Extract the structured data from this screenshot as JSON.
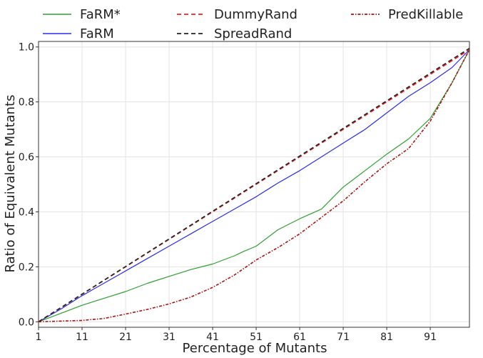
{
  "chart_data": {
    "type": "line",
    "xlabel": "Percentage of Mutants",
    "ylabel": "Ratio of Equivalent Mutants",
    "xlim": [
      1,
      100
    ],
    "ylim": [
      -0.02,
      1.02
    ],
    "x_ticks": [
      1,
      11,
      21,
      31,
      41,
      51,
      61,
      71,
      81,
      91
    ],
    "x_tick_labels": [
      "1",
      "11",
      "21",
      "31",
      "41",
      "51",
      "61",
      "71",
      "81",
      "91"
    ],
    "y_ticks": [
      0.0,
      0.2,
      0.4,
      0.6,
      0.8,
      1.0
    ],
    "y_tick_labels": [
      "0.0",
      "0.2",
      "0.4",
      "0.6",
      "0.8",
      "1.0"
    ],
    "grid": true,
    "legend_placement": "top, outside plot",
    "series": [
      {
        "name": "FaRM*",
        "color": "#2ca02c",
        "dash": "solid",
        "x": [
          1,
          6,
          11,
          16,
          21,
          26,
          31,
          36,
          41,
          46,
          48,
          51,
          56,
          61,
          66,
          71,
          76,
          81,
          86,
          91,
          96,
          100
        ],
        "y": [
          0.0,
          0.03,
          0.06,
          0.085,
          0.11,
          0.14,
          0.165,
          0.19,
          0.21,
          0.24,
          0.255,
          0.275,
          0.335,
          0.375,
          0.41,
          0.49,
          0.55,
          0.61,
          0.665,
          0.74,
          0.87,
          0.99
        ]
      },
      {
        "name": "FaRM",
        "color": "#2b2bee",
        "dash": "solid",
        "x": [
          1,
          6,
          11,
          16,
          21,
          26,
          31,
          36,
          41,
          46,
          51,
          56,
          61,
          66,
          71,
          76,
          81,
          86,
          91,
          96,
          100
        ],
        "y": [
          0.0,
          0.045,
          0.095,
          0.14,
          0.185,
          0.23,
          0.275,
          0.32,
          0.365,
          0.41,
          0.455,
          0.505,
          0.55,
          0.6,
          0.65,
          0.7,
          0.76,
          0.82,
          0.87,
          0.925,
          0.99
        ]
      },
      {
        "name": "DummyRand",
        "color": "#ee2222",
        "dash": "dashed",
        "x": [
          1,
          100
        ],
        "y": [
          0.0,
          0.99
        ]
      },
      {
        "name": "SpreadRand",
        "color": "#222222",
        "dash": "dashed",
        "x": [
          1,
          100
        ],
        "y": [
          0.0,
          0.995
        ]
      },
      {
        "name": "PredKillable",
        "color": "#aa1111",
        "dash": "dashdot",
        "x": [
          1,
          11,
          16,
          21,
          26,
          31,
          36,
          41,
          46,
          51,
          56,
          61,
          66,
          71,
          76,
          81,
          86,
          91,
          96,
          100
        ],
        "y": [
          0.0,
          0.005,
          0.012,
          0.028,
          0.045,
          0.065,
          0.09,
          0.125,
          0.17,
          0.225,
          0.27,
          0.32,
          0.38,
          0.44,
          0.51,
          0.575,
          0.63,
          0.73,
          0.87,
          0.99
        ]
      }
    ]
  }
}
